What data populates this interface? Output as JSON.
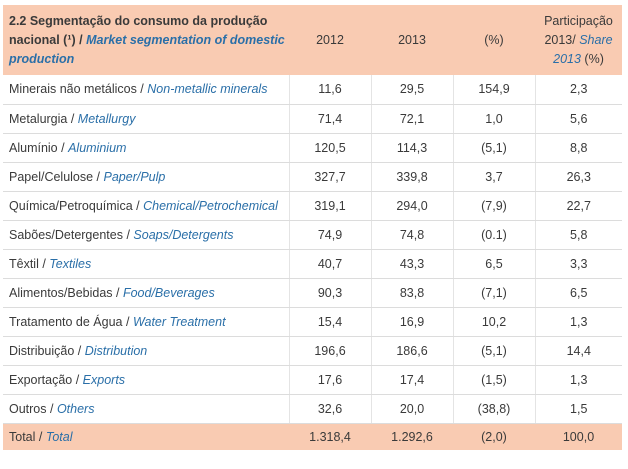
{
  "header": {
    "title_pt": "2.2 Segmentação do consumo da produção nacional (¹) /",
    "title_en": "Market segmentation of domestic production",
    "col_2012": "2012",
    "col_2013": "2013",
    "col_pct": "(%)",
    "col_share_pt": "Participação 2013/",
    "col_share_en": "Share 2013",
    "col_share_suffix": "(%)"
  },
  "rows": [
    {
      "pt": "Minerais não metálicos /",
      "en": "Non-metallic minerals",
      "v2012": "11,6",
      "v2013": "29,5",
      "pct": "154,9",
      "share": "2,3"
    },
    {
      "pt": "Metalurgia  /",
      "en": "Metallurgy",
      "v2012": "71,4",
      "v2013": "72,1",
      "pct": "1,0",
      "share": "5,6"
    },
    {
      "pt": "Alumínio /",
      "en": "Aluminium",
      "v2012": "120,5",
      "v2013": "114,3",
      "pct": "(5,1)",
      "share": "8,8"
    },
    {
      "pt": "Papel/Celulose /",
      "en": "Paper/Pulp",
      "v2012": "327,7",
      "v2013": "339,8",
      "pct": "3,7",
      "share": "26,3"
    },
    {
      "pt": "Química/Petroquímica /",
      "en": "Chemical/Petrochemical",
      "v2012": "319,1",
      "v2013": "294,0",
      "pct": "(7,9)",
      "share": "22,7"
    },
    {
      "pt": "Sabões/Detergentes /",
      "en": "Soaps/Detergents",
      "v2012": "74,9",
      "v2013": "74,8",
      "pct": "(0.1)",
      "share": "5,8"
    },
    {
      "pt": "Têxtil /",
      "en": "Textiles",
      "v2012": "40,7",
      "v2013": "43,3",
      "pct": "6,5",
      "share": "3,3"
    },
    {
      "pt": "Alimentos/Bebidas /",
      "en": "Food/Beverages",
      "v2012": "90,3",
      "v2013": "83,8",
      "pct": "(7,1)",
      "share": "6,5"
    },
    {
      "pt": "Tratamento de Água /",
      "en": "Water Treatment",
      "v2012": "15,4",
      "v2013": "16,9",
      "pct": "10,2",
      "share": "1,3"
    },
    {
      "pt": "Distribuição  /",
      "en": "Distribution",
      "v2012": "196,6",
      "v2013": "186,6",
      "pct": "(5,1)",
      "share": "14,4"
    },
    {
      "pt": "Exportação /",
      "en": "Exports",
      "v2012": "17,6",
      "v2013": "17,4",
      "pct": "(1,5)",
      "share": "1,3"
    },
    {
      "pt": "Outros /",
      "en": "Others",
      "v2012": "32,6",
      "v2013": "20,0",
      "pct": "(38,8)",
      "share": "1,5"
    }
  ],
  "total": {
    "pt": "Total /",
    "en": "Total",
    "v2012": "1.318,4",
    "v2013": "1.292,6",
    "pct": "(2,0)",
    "share": "100,0"
  }
}
